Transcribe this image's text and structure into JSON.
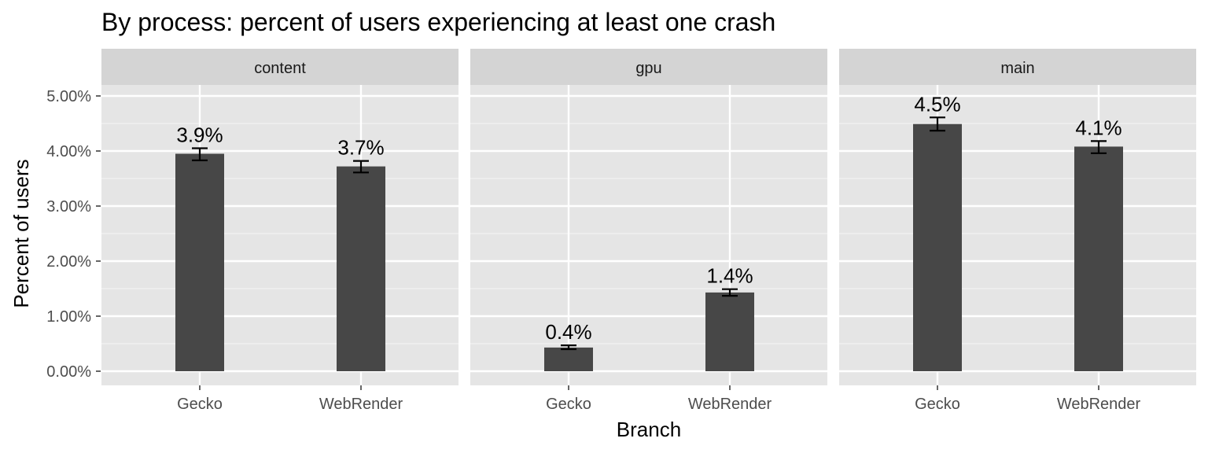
{
  "chart_data": {
    "type": "bar",
    "title": "By process: percent of users experiencing at least one crash",
    "xlabel": "Branch",
    "ylabel": "Percent of users",
    "ylim": [
      0,
      0.05
    ],
    "y_ticks": [
      0,
      0.01,
      0.02,
      0.03,
      0.04,
      0.05
    ],
    "y_tick_labels": [
      "0.00%",
      "1.00%",
      "2.00%",
      "3.00%",
      "4.00%",
      "5.00%"
    ],
    "categories": [
      "Gecko",
      "WebRender"
    ],
    "grid": true,
    "bar_color": "#474747",
    "panel_background": "#e5e5e5",
    "strip_background": "#d4d4d4",
    "facets": [
      {
        "name": "content",
        "values": [
          0.0395,
          0.0372
        ],
        "error_low": [
          0.0383,
          0.0361
        ],
        "error_high": [
          0.0405,
          0.0382
        ],
        "labels": [
          "3.9%",
          "3.7%"
        ]
      },
      {
        "name": "gpu",
        "values": [
          0.0043,
          0.0143
        ],
        "error_low": [
          0.004,
          0.0137
        ],
        "error_high": [
          0.0047,
          0.0149
        ],
        "labels": [
          "0.4%",
          "1.4%"
        ]
      },
      {
        "name": "main",
        "values": [
          0.0449,
          0.0408
        ],
        "error_low": [
          0.0437,
          0.0396
        ],
        "error_high": [
          0.0461,
          0.0418
        ],
        "labels": [
          "4.5%",
          "4.1%"
        ]
      }
    ]
  }
}
